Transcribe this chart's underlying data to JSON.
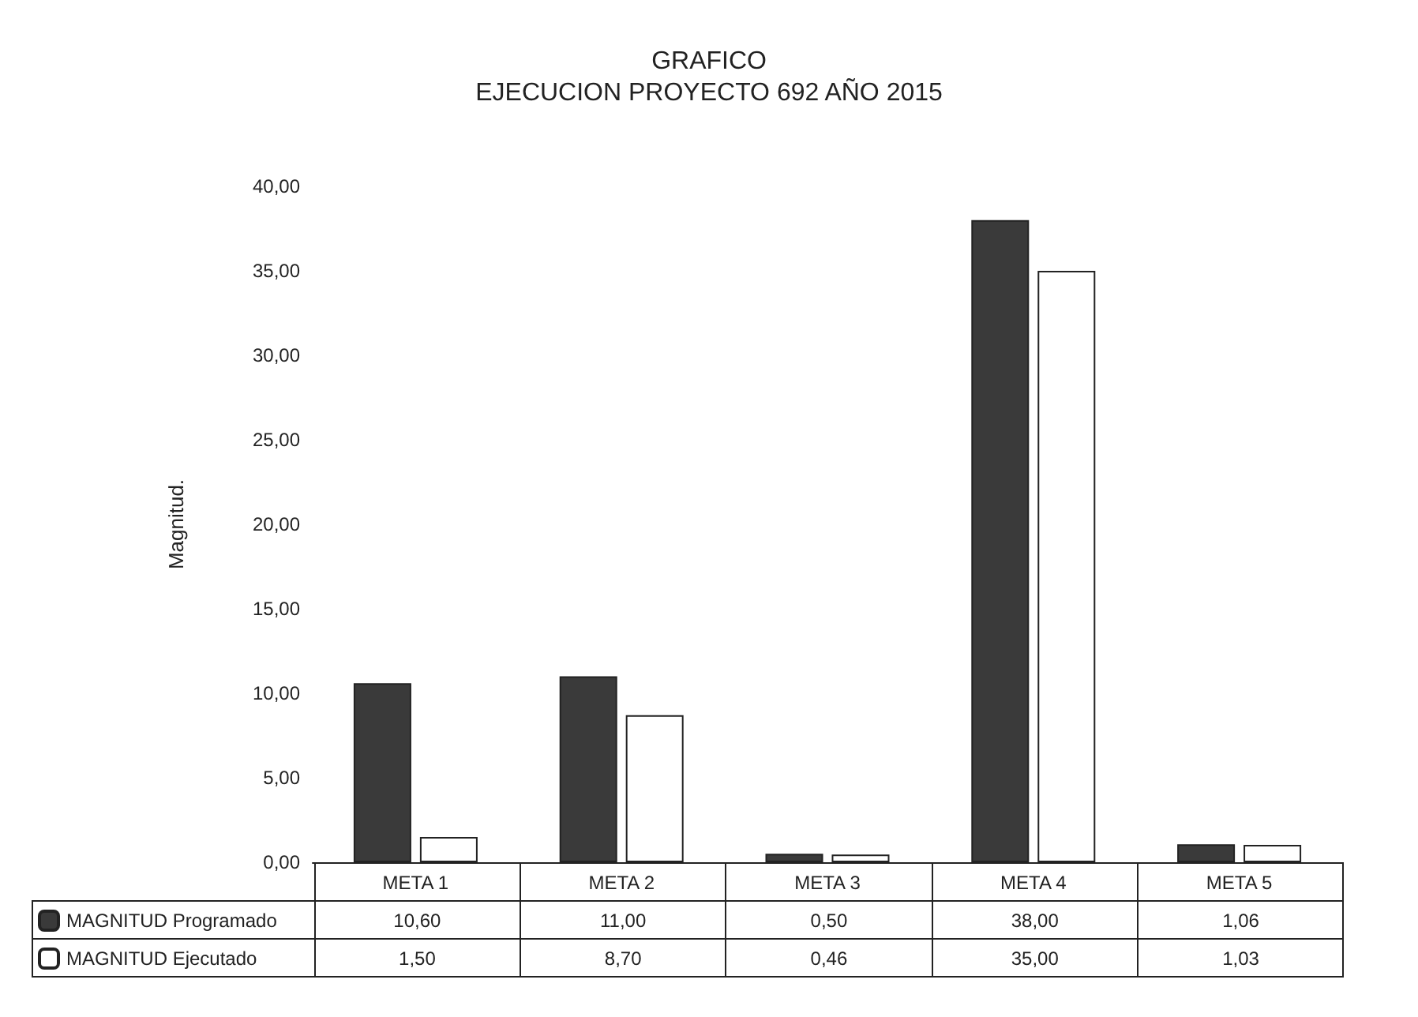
{
  "chart_data": {
    "type": "bar",
    "title": "GRAFICO",
    "subtitle": "EJECUCION PROYECTO 692 AÑO 2015",
    "ylabel": "Magnitud.",
    "categories": [
      "META 1",
      "META 2",
      "META 3",
      "META 4",
      "META 5"
    ],
    "series": [
      {
        "name": "MAGNITUD Programado",
        "color": "#3a3a3a",
        "values": [
          10.6,
          11.0,
          0.5,
          38.0,
          1.06
        ],
        "value_labels": [
          "10,60",
          "11,00",
          "0,50",
          "38,00",
          "1,06"
        ]
      },
      {
        "name": "MAGNITUD Ejecutado",
        "color": "#ffffff",
        "values": [
          1.5,
          8.7,
          0.46,
          35.0,
          1.03
        ],
        "value_labels": [
          "1,50",
          "8,70",
          "0,46",
          "35,00",
          "1,03"
        ]
      }
    ],
    "ylim": [
      0,
      40
    ],
    "yticks": [
      {
        "value": 0,
        "label": "0,00"
      },
      {
        "value": 5,
        "label": "5,00"
      },
      {
        "value": 10,
        "label": "10,00"
      },
      {
        "value": 15,
        "label": "15,00"
      },
      {
        "value": 20,
        "label": "20,00"
      },
      {
        "value": 25,
        "label": "25,00"
      },
      {
        "value": 30,
        "label": "30,00"
      },
      {
        "value": 35,
        "label": "35,00"
      },
      {
        "value": 40,
        "label": "40,00"
      }
    ],
    "grid": false,
    "legend": "bottom left"
  }
}
